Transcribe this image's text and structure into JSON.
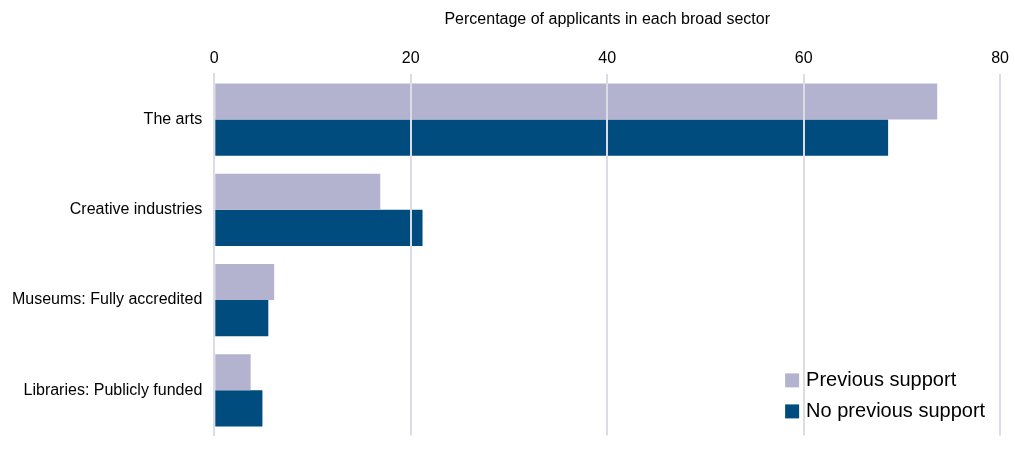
{
  "chart_data": {
    "type": "bar",
    "orientation": "horizontal",
    "xlabel": "Percentage of applicants in each broad sector",
    "categories": [
      "The arts",
      "Creative industries",
      "Museums: Fully accredited",
      "Libraries: Publicly funded"
    ],
    "series": [
      {
        "name": "Previous support",
        "color": "#b3b3cf",
        "values": [
          73.6,
          16.9,
          6.1,
          3.7
        ]
      },
      {
        "name": "No previous support",
        "color": "#004c7f",
        "values": [
          68.6,
          21.2,
          5.5,
          4.9
        ]
      }
    ],
    "xlim": [
      0,
      80
    ],
    "xticks": [
      0,
      20,
      40,
      60,
      80
    ],
    "grid": "x",
    "legend": "bottom right"
  }
}
